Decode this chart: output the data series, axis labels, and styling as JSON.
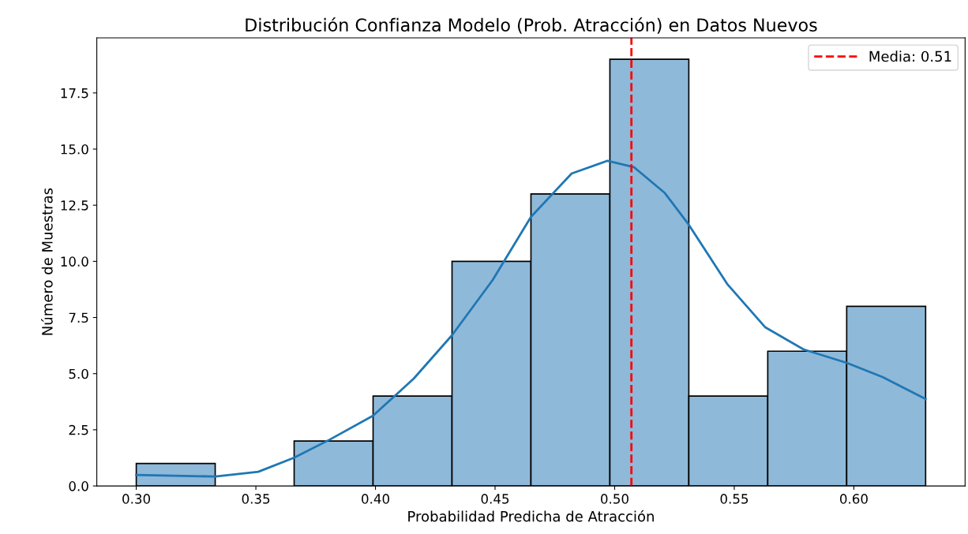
{
  "chart_data": {
    "type": "histogram",
    "title": "Distribución Confianza Modelo (Prob. Atracción) en Datos Nuevos",
    "xlabel": "Probabilidad Predicha de Atracción",
    "ylabel": "Número de Muestras",
    "bins": [
      0.3,
      0.333,
      0.366,
      0.399,
      0.432,
      0.465,
      0.498,
      0.531,
      0.564,
      0.597,
      0.63
    ],
    "values": [
      1,
      0,
      2,
      4,
      10,
      13,
      19,
      4,
      6,
      8
    ],
    "color": "#8fb9d9",
    "series": [
      {
        "type": "line",
        "color": "#1f77b4",
        "x": [
          0.3,
          0.333,
          0.351,
          0.366,
          0.381,
          0.399,
          0.416,
          0.432,
          0.449,
          0.465,
          0.482,
          0.497,
          0.508,
          0.521,
          0.531,
          0.547,
          0.563,
          0.579,
          0.597,
          0.612,
          0.63
        ],
        "values": [
          0.49,
          0.42,
          0.63,
          1.26,
          2.07,
          3.13,
          4.78,
          6.71,
          9.17,
          11.98,
          13.91,
          14.48,
          14.2,
          13.04,
          11.63,
          9.0,
          7.06,
          6.08,
          5.48,
          4.85,
          3.87
        ]
      },
      {
        "type": "line",
        "name": "Media: 0.51",
        "color": "#ff0000",
        "line_style": "dashed",
        "x": [
          0.507,
          0.507
        ],
        "values": [
          0,
          19.95
        ]
      }
    ],
    "xlim": [
      0.2835,
      0.6465
    ],
    "ylim": [
      0,
      19.95
    ],
    "xticks": [
      {
        "value": 0.3,
        "label": "0.30"
      },
      0.35,
      {
        "value": 0.4,
        "label": "0.40"
      },
      0.45,
      {
        "value": 0.5,
        "label": "0.50"
      },
      0.55,
      {
        "value": 0.6,
        "label": "0.60"
      }
    ],
    "yticks": [
      {
        "value": 0,
        "label": "0.0"
      },
      2.5,
      {
        "value": 5,
        "label": "5.0"
      },
      7.5,
      {
        "value": 10,
        "label": "10.0"
      },
      12.5,
      {
        "value": 15,
        "label": "15.0"
      },
      17.5
    ],
    "grid": false,
    "legend": "top right"
  }
}
